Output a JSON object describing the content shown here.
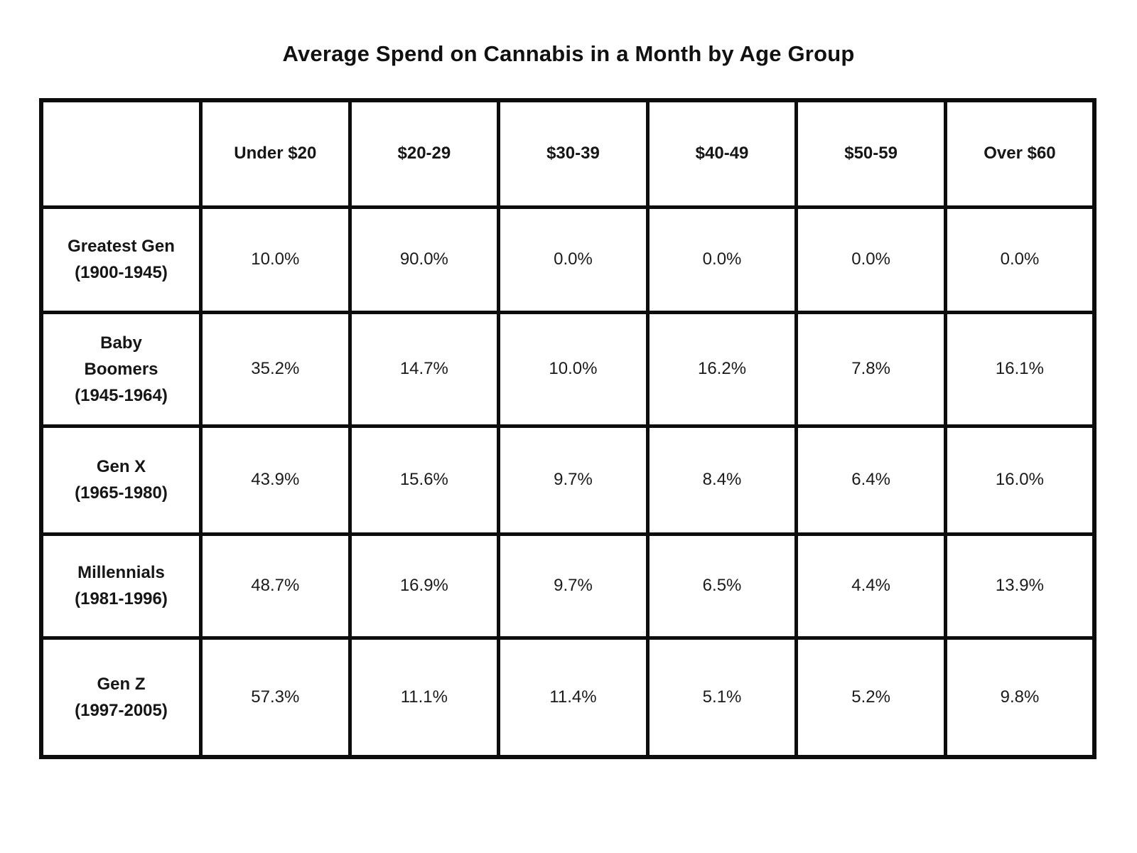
{
  "title": "Average Spend on Cannabis in a Month by Age Group",
  "colors": {
    "header_bg": "#F4BE2C",
    "border": "#0D0D0D",
    "cell_bg": "#FFFFFF",
    "text": "#141414"
  },
  "chart_data": {
    "type": "table",
    "title": "Average Spend on Cannabis in a Month by Age Group",
    "columns": [
      "",
      "Under $20",
      "$20-29",
      "$30-39",
      "$40-49",
      "$50-59",
      "Over $60"
    ],
    "rows": [
      {
        "label_lines": [
          "Greatest Gen",
          "(1900-1945)"
        ],
        "values": [
          "10.0%",
          "90.0%",
          "0.0%",
          "0.0%",
          "0.0%",
          "0.0%"
        ]
      },
      {
        "label_lines": [
          "Baby",
          "Boomers",
          "(1945-1964)"
        ],
        "values": [
          "35.2%",
          "14.7%",
          "10.0%",
          "16.2%",
          "7.8%",
          "16.1%"
        ]
      },
      {
        "label_lines": [
          "Gen X",
          "(1965-1980)"
        ],
        "values": [
          "43.9%",
          "15.6%",
          "9.7%",
          "8.4%",
          "6.4%",
          "16.0%"
        ]
      },
      {
        "label_lines": [
          "Millennials",
          "(1981-1996)"
        ],
        "values": [
          "48.7%",
          "16.9%",
          "9.7%",
          "6.5%",
          "4.4%",
          "13.9%"
        ]
      },
      {
        "label_lines": [
          "Gen Z",
          "(1997-2005)"
        ],
        "values": [
          "57.3%",
          "11.1%",
          "11.4%",
          "5.1%",
          "5.2%",
          "9.8%"
        ]
      }
    ]
  }
}
